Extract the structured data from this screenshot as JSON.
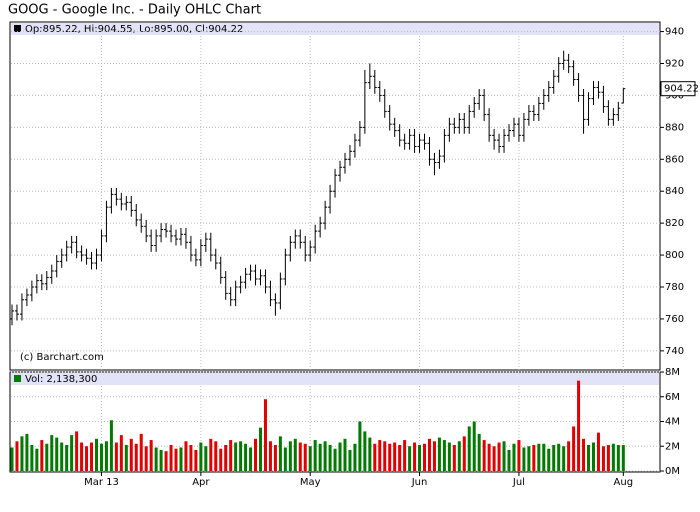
{
  "chart_data": {
    "type": "ohlc",
    "title": "GOOG - Google Inc. - Daily OHLC Chart",
    "legend_text": "Op:895.22, Hi:904.55, Lo:895.00, Cl:904.22",
    "volume_text": "Vol: 2,138,300",
    "copyright": "(c) Barchart.com",
    "categories": [
      null,
      null,
      null,
      null,
      null,
      null,
      null,
      null,
      null,
      null,
      null,
      null,
      null,
      null,
      null,
      null,
      null,
      null,
      "Mar 13",
      null,
      null,
      null,
      null,
      null,
      null,
      null,
      null,
      null,
      null,
      null,
      null,
      null,
      null,
      null,
      null,
      null,
      null,
      null,
      "Apr",
      null,
      null,
      null,
      null,
      null,
      null,
      null,
      null,
      null,
      null,
      null,
      null,
      null,
      null,
      null,
      null,
      null,
      null,
      null,
      null,
      null,
      "May",
      null,
      null,
      null,
      null,
      null,
      null,
      null,
      null,
      null,
      null,
      null,
      null,
      null,
      null,
      null,
      null,
      null,
      null,
      null,
      null,
      null,
      "Jun",
      null,
      null,
      null,
      null,
      null,
      null,
      null,
      null,
      null,
      null,
      null,
      null,
      null,
      null,
      null,
      null,
      null,
      null,
      null,
      "Jul",
      null,
      null,
      null,
      null,
      null,
      null,
      null,
      null,
      null,
      null,
      null,
      null,
      null,
      null,
      null,
      null,
      null,
      null,
      null,
      null,
      "Aug"
    ],
    "open": [
      760,
      765,
      763,
      772,
      775,
      780,
      784,
      782,
      786,
      790,
      796,
      800,
      805,
      808,
      802,
      800,
      798,
      795,
      800,
      812,
      830,
      838,
      835,
      832,
      833,
      828,
      822,
      818,
      812,
      806,
      812,
      816,
      815,
      812,
      810,
      813,
      808,
      800,
      797,
      806,
      810,
      800,
      795,
      786,
      776,
      772,
      780,
      783,
      788,
      790,
      785,
      787,
      780,
      772,
      770,
      785,
      800,
      808,
      812,
      808,
      800,
      805,
      815,
      820,
      830,
      840,
      850,
      855,
      860,
      865,
      872,
      880,
      908,
      912,
      905,
      900,
      890,
      882,
      878,
      872,
      870,
      875,
      868,
      872,
      870,
      860,
      858,
      862,
      875,
      882,
      880,
      885,
      880,
      890,
      895,
      900,
      888,
      875,
      872,
      868,
      875,
      878,
      882,
      875,
      885,
      890,
      888,
      895,
      900,
      905,
      912,
      920,
      922,
      918,
      910,
      900,
      885,
      898,
      905,
      902,
      893,
      885,
      888,
      895.22
    ],
    "high": [
      769,
      769,
      776,
      779,
      784,
      788,
      788,
      790,
      794,
      800,
      804,
      809,
      812,
      812,
      806,
      804,
      802,
      804,
      816,
      834,
      842,
      842,
      839,
      837,
      837,
      832,
      826,
      822,
      816,
      816,
      820,
      820,
      819,
      816,
      817,
      817,
      812,
      804,
      810,
      814,
      814,
      804,
      799,
      790,
      780,
      784,
      787,
      792,
      794,
      794,
      791,
      791,
      784,
      776,
      789,
      804,
      812,
      816,
      816,
      812,
      809,
      819,
      824,
      834,
      844,
      854,
      859,
      864,
      869,
      876,
      884,
      916,
      920,
      916,
      909,
      904,
      894,
      886,
      882,
      876,
      879,
      879,
      876,
      876,
      874,
      864,
      866,
      879,
      886,
      886,
      889,
      889,
      894,
      899,
      904,
      904,
      892,
      879,
      876,
      879,
      882,
      886,
      886,
      889,
      894,
      894,
      899,
      904,
      909,
      916,
      924,
      928,
      926,
      922,
      914,
      904,
      902,
      909,
      909,
      906,
      897,
      892,
      896,
      904.55
    ],
    "low": [
      756,
      759,
      759,
      768,
      771,
      776,
      778,
      778,
      782,
      786,
      792,
      796,
      801,
      798,
      796,
      794,
      791,
      791,
      796,
      808,
      826,
      831,
      828,
      828,
      824,
      818,
      814,
      808,
      802,
      802,
      808,
      811,
      808,
      806,
      806,
      804,
      796,
      793,
      793,
      802,
      796,
      791,
      782,
      772,
      768,
      768,
      776,
      779,
      784,
      781,
      781,
      776,
      768,
      762,
      766,
      781,
      796,
      804,
      804,
      796,
      796,
      801,
      811,
      816,
      826,
      836,
      846,
      851,
      856,
      861,
      868,
      876,
      904,
      901,
      896,
      886,
      878,
      874,
      868,
      866,
      866,
      864,
      864,
      866,
      856,
      850,
      854,
      858,
      871,
      876,
      876,
      876,
      876,
      886,
      891,
      884,
      871,
      866,
      864,
      864,
      871,
      874,
      871,
      871,
      881,
      884,
      884,
      891,
      896,
      901,
      908,
      916,
      914,
      906,
      896,
      876,
      881,
      894,
      898,
      889,
      881,
      881,
      884,
      895
    ],
    "close": [
      765,
      763,
      772,
      775,
      780,
      784,
      782,
      786,
      790,
      796,
      800,
      805,
      808,
      802,
      800,
      798,
      795,
      800,
      812,
      830,
      838,
      835,
      832,
      833,
      828,
      822,
      818,
      812,
      806,
      812,
      816,
      815,
      812,
      810,
      813,
      808,
      800,
      797,
      806,
      810,
      800,
      795,
      786,
      776,
      772,
      780,
      783,
      788,
      790,
      785,
      787,
      780,
      772,
      770,
      785,
      800,
      808,
      812,
      808,
      800,
      805,
      815,
      820,
      830,
      840,
      850,
      855,
      860,
      865,
      872,
      880,
      908,
      912,
      905,
      900,
      890,
      882,
      878,
      872,
      870,
      875,
      868,
      872,
      870,
      860,
      858,
      862,
      875,
      882,
      880,
      885,
      880,
      890,
      895,
      900,
      888,
      875,
      872,
      868,
      875,
      878,
      882,
      875,
      885,
      890,
      888,
      895,
      900,
      905,
      912,
      920,
      922,
      918,
      910,
      900,
      885,
      898,
      905,
      902,
      893,
      885,
      888,
      892,
      904.22
    ],
    "volume": [
      1.9,
      2.4,
      2.8,
      3.0,
      2.1,
      1.8,
      2.5,
      2.2,
      2.9,
      2.7,
      2.3,
      2.1,
      2.9,
      3.2,
      2.3,
      2.0,
      2.3,
      2.6,
      2.2,
      2.4,
      4.1,
      2.3,
      2.9,
      2.1,
      2.6,
      2.2,
      3.0,
      2.0,
      2.5,
      1.9,
      1.7,
      1.6,
      2.1,
      1.8,
      1.9,
      2.4,
      2.1,
      1.7,
      2.3,
      2.0,
      2.6,
      2.4,
      1.8,
      2.1,
      2.5,
      2.3,
      2.4,
      2.2,
      1.9,
      2.6,
      3.5,
      5.8,
      2.4,
      2.1,
      2.8,
      1.9,
      2.4,
      2.6,
      2.3,
      2.2,
      2.0,
      2.5,
      2.2,
      2.4,
      2.1,
      1.8,
      2.3,
      2.6,
      1.7,
      2.2,
      4.0,
      3.2,
      2.7,
      2.2,
      2.5,
      2.4,
      2.2,
      2.3,
      2.1,
      2.5,
      2.0,
      2.3,
      2.1,
      2.2,
      2.6,
      2.4,
      2.7,
      2.5,
      2.3,
      2.1,
      2.4,
      2.8,
      3.6,
      4.0,
      3.0,
      2.5,
      2.2,
      2.0,
      2.3,
      2.4,
      1.7,
      2.2,
      2.5,
      1.9,
      2.0,
      2.1,
      2.2,
      2.2,
      1.8,
      2.1,
      2.2,
      2.0,
      2.4,
      3.6,
      7.3,
      2.6,
      2.1,
      2.3,
      3.1,
      2.0,
      2.1,
      2.2,
      2.1,
      2.1
    ],
    "ylim": [
      728,
      946
    ],
    "yticks": [
      740,
      760,
      780,
      800,
      820,
      840,
      860,
      880,
      900,
      920,
      940
    ],
    "vol_ylim": [
      0,
      8
    ],
    "vol_yticks": [
      {
        "value": 0,
        "label": "0M"
      },
      {
        "value": 2,
        "label": "2M"
      },
      {
        "value": 4,
        "label": "4M"
      },
      {
        "value": 6,
        "label": "6M"
      },
      {
        "value": 8,
        "label": "8M"
      }
    ],
    "up_color": "#007a00",
    "down_color": "#e00000",
    "bar_color": "#000000",
    "grid": true
  }
}
